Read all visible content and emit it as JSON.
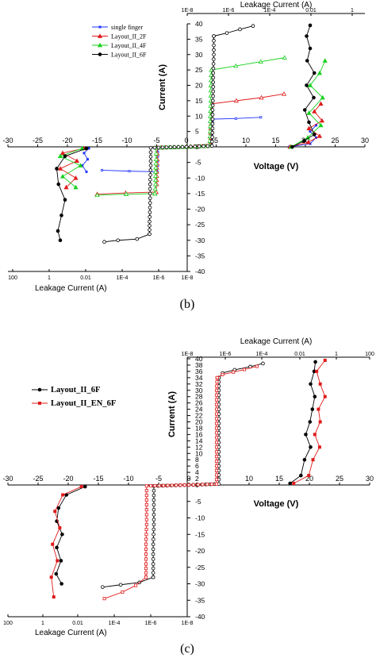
{
  "panel_labels": [
    "(b)",
    "(c)"
  ],
  "chart_data": [
    {
      "type": "line",
      "panel": "(b)",
      "xlabel": "Voltage (V)",
      "ylabel": "Current (A)",
      "top_axis_label": "Leakage Current (A)",
      "bottom_axis_label": "Leakage Current (A)",
      "xlim": [
        -30,
        30
      ],
      "ylim": [
        -40,
        40
      ],
      "x_ticks": [
        "-30",
        "-25",
        "-20",
        "-15",
        "-10",
        "-5",
        "0",
        "5",
        "10",
        "15",
        "20",
        "25",
        "30"
      ],
      "y_ticks": [
        "40",
        "35",
        "30",
        "25",
        "20",
        "15",
        "10",
        "5",
        "0",
        "-5",
        "-10",
        "-15",
        "-20",
        "-25",
        "-30",
        "-35",
        "-40"
      ],
      "leak_ticks_top": [
        "1E-8",
        "1E-6",
        "1E-4",
        "0.01",
        "1"
      ],
      "leak_ticks_bottom": [
        "100",
        "1",
        "0.01",
        "1E-4",
        "1E-6",
        "1E-8"
      ],
      "legend_position": "top-left",
      "series": [
        {
          "name": "single finger",
          "color": "#1f35ff",
          "marker": "square",
          "pos_iv": [
            [
              0,
              0
            ],
            [
              4.2,
              0.3
            ],
            [
              4.3,
              2
            ],
            [
              4.3,
              4
            ],
            [
              4.3,
              6
            ],
            [
              4.4,
              8
            ],
            [
              4.5,
              9
            ]
          ],
          "pos_leak": [
            [
              4.2,
              9
            ],
            [
              8.3,
              9.2
            ],
            [
              12.5,
              9.6
            ]
          ],
          "pos_drift": [
            [
              17.3,
              0
            ],
            [
              20.8,
              1
            ],
            [
              21.8,
              3
            ],
            [
              20.8,
              5
            ],
            [
              21.8,
              7
            ]
          ],
          "neg_iv": [
            [
              0,
              0
            ],
            [
              -4.8,
              -0.3
            ],
            [
              -4.8,
              -3
            ],
            [
              -4.8,
              -6
            ],
            [
              -4.9,
              -8
            ]
          ],
          "neg_leak": [
            [
              -4.9,
              -8
            ],
            [
              -9.6,
              -7.8
            ],
            [
              -14.2,
              -7.5
            ]
          ],
          "neg_drift": [
            [
              -16.4,
              -0.5
            ],
            [
              -17.2,
              -2
            ],
            [
              -16.6,
              -4
            ],
            [
              -17.5,
              -6
            ],
            [
              -16.8,
              -8
            ]
          ]
        },
        {
          "name": "Layout_II_2F",
          "color": "#e01b1b",
          "marker": "triangle",
          "pos_iv": [
            [
              0,
              0
            ],
            [
              4.0,
              0.3
            ],
            [
              4.1,
              3
            ],
            [
              4.1,
              6
            ],
            [
              4.2,
              9
            ],
            [
              4.2,
              12
            ],
            [
              4.3,
              14
            ]
          ],
          "pos_leak": [
            [
              4.3,
              14
            ],
            [
              8.4,
              15
            ],
            [
              12.6,
              16
            ],
            [
              16.4,
              17.2
            ]
          ],
          "pos_drift": [
            [
              17.4,
              0
            ],
            [
              20.5,
              1.5
            ],
            [
              22.4,
              3.5
            ],
            [
              20.6,
              6
            ],
            [
              22.8,
              8.5
            ],
            [
              21.5,
              11.5
            ],
            [
              22.6,
              14
            ]
          ],
          "neg_iv": [
            [
              0,
              0
            ],
            [
              -4.9,
              -0.3
            ],
            [
              -4.9,
              -4
            ],
            [
              -5.0,
              -8
            ],
            [
              -5.0,
              -12
            ],
            [
              -5.1,
              -14.5
            ]
          ],
          "neg_leak": [
            [
              -5.1,
              -14.5
            ],
            [
              -10.2,
              -14.8
            ],
            [
              -15.0,
              -15.2
            ]
          ],
          "neg_drift": [
            [
              -17.2,
              -0.5
            ],
            [
              -20.8,
              -2
            ],
            [
              -18.4,
              -4.5
            ],
            [
              -21.2,
              -7
            ],
            [
              -18.6,
              -10
            ],
            [
              -20.2,
              -13
            ]
          ]
        },
        {
          "name": "Layout_II_4F",
          "color": "#19d11e",
          "marker": "triangle",
          "pos_iv": [
            [
              0,
              0
            ],
            [
              3.9,
              0.3
            ],
            [
              4.0,
              5
            ],
            [
              4.0,
              10
            ],
            [
              4.1,
              15
            ],
            [
              4.1,
              20
            ],
            [
              4.2,
              25
            ]
          ],
          "pos_leak": [
            [
              4.2,
              25
            ],
            [
              8.3,
              26.3
            ],
            [
              12.5,
              27.7
            ],
            [
              16.5,
              29
            ]
          ],
          "pos_drift": [
            [
              17.6,
              0
            ],
            [
              20.4,
              3
            ],
            [
              22.6,
              7
            ],
            [
              20.6,
              11
            ],
            [
              22.9,
              16
            ],
            [
              20.8,
              20
            ],
            [
              22.4,
              24
            ],
            [
              23.3,
              28
            ]
          ],
          "neg_iv": [
            [
              0,
              0
            ],
            [
              -5.1,
              -0.3
            ],
            [
              -5.1,
              -4
            ],
            [
              -5.2,
              -8
            ],
            [
              -5.2,
              -12
            ],
            [
              -5.3,
              -15
            ]
          ],
          "neg_leak": [
            [
              -5.3,
              -15
            ],
            [
              -10.1,
              -15.2
            ],
            [
              -15.0,
              -15.5
            ]
          ],
          "neg_drift": [
            [
              -17.5,
              -0.5
            ],
            [
              -21.2,
              -3
            ],
            [
              -17.8,
              -6
            ],
            [
              -20.8,
              -9.5
            ],
            [
              -18.6,
              -13
            ]
          ]
        },
        {
          "name": "Layout_II_6F",
          "color": "#000000",
          "marker": "circle",
          "pos_iv": [
            [
              0,
              0
            ],
            [
              4.3,
              0.3
            ],
            [
              4.4,
              6
            ],
            [
              4.4,
              12
            ],
            [
              4.5,
              18
            ],
            [
              4.5,
              24
            ],
            [
              4.6,
              30
            ],
            [
              4.6,
              36
            ]
          ],
          "pos_leak": [
            [
              4.6,
              36
            ],
            [
              6.8,
              37
            ],
            [
              9.0,
              38.2
            ],
            [
              11.2,
              39.3
            ]
          ],
          "pos_drift": [
            [
              17.8,
              0
            ],
            [
              19.8,
              2
            ],
            [
              21.5,
              4
            ],
            [
              20.6,
              8
            ],
            [
              19.9,
              12
            ],
            [
              21.4,
              16
            ],
            [
              20.2,
              20
            ],
            [
              21.5,
              24
            ],
            [
              20.3,
              28
            ],
            [
              20.8,
              32
            ],
            [
              20.2,
              36
            ],
            [
              20.8,
              39.5
            ]
          ],
          "neg_iv": [
            [
              0,
              0
            ],
            [
              -6.0,
              -0.3
            ],
            [
              -6.0,
              -6
            ],
            [
              -6.1,
              -12
            ],
            [
              -6.1,
              -18
            ],
            [
              -6.2,
              -24
            ],
            [
              -6.2,
              -28
            ]
          ],
          "neg_leak": [
            [
              -6.2,
              -28
            ],
            [
              -8.3,
              -29.6
            ],
            [
              -11.5,
              -30
            ],
            [
              -13.8,
              -30.5
            ]
          ],
          "neg_drift": [
            [
              -16.8,
              -0.5
            ],
            [
              -20.4,
              -3
            ],
            [
              -21.8,
              -7
            ],
            [
              -21.5,
              -12
            ],
            [
              -20.4,
              -17
            ],
            [
              -21.0,
              -22
            ],
            [
              -21.6,
              -27
            ],
            [
              -21.2,
              -30
            ]
          ]
        }
      ]
    },
    {
      "type": "line",
      "panel": "(c)",
      "xlabel": "Voltage (V)",
      "ylabel": "Current (A)",
      "top_axis_label": "Leakage Current (A)",
      "bottom_axis_label": "Leakage Current (A)",
      "xlim": [
        -30,
        30
      ],
      "ylim": [
        -40,
        40
      ],
      "x_ticks": [
        "-30",
        "-25",
        "-20",
        "-15",
        "-10",
        "-5",
        "0",
        "5",
        "10",
        "15",
        "20",
        "25",
        "30"
      ],
      "y_ticks": [
        "40",
        "38",
        "36",
        "34",
        "32",
        "30",
        "28",
        "26",
        "24",
        "22",
        "20",
        "18",
        "16",
        "14",
        "12",
        "10",
        "8",
        "6",
        "4",
        "2",
        "0",
        "-5",
        "-10",
        "-15",
        "-20",
        "-25",
        "-30",
        "-35",
        "-40"
      ],
      "leak_ticks_top": [
        "1E-8",
        "1E-6",
        "1E-4",
        "0.01",
        "1",
        "100"
      ],
      "leak_ticks_bottom": [
        "100",
        "1",
        "0.01",
        "1E-4",
        "1E-6",
        "1E-8"
      ],
      "legend_position": "top-left",
      "series": [
        {
          "name": "Layout_II_6F",
          "color": "#000000",
          "marker": "circle",
          "pos_iv": [
            [
              0,
              0
            ],
            [
              5.0,
              0.3
            ],
            [
              5.0,
              6
            ],
            [
              5.0,
              12
            ],
            [
              5.0,
              18
            ],
            [
              5.0,
              24
            ],
            [
              5.0,
              30
            ],
            [
              5.0,
              34
            ]
          ],
          "pos_leak": [
            [
              5.0,
              34
            ],
            [
              5.6,
              35.5
            ],
            [
              7.6,
              36.5
            ],
            [
              10.2,
              37.5
            ],
            [
              12.3,
              38.5
            ]
          ],
          "pos_drift": [
            [
              16.8,
              0.5
            ],
            [
              18.6,
              3
            ],
            [
              19.2,
              8
            ],
            [
              20.2,
              12
            ],
            [
              19.4,
              16
            ],
            [
              20.1,
              20
            ],
            [
              20.5,
              24
            ],
            [
              20.9,
              28
            ],
            [
              20.2,
              32
            ],
            [
              20.8,
              36
            ],
            [
              21.0,
              39
            ]
          ],
          "neg_iv": [
            [
              0,
              0
            ],
            [
              -5.8,
              -0.3
            ],
            [
              -5.8,
              -6
            ],
            [
              -5.8,
              -12
            ],
            [
              -5.9,
              -18
            ],
            [
              -5.9,
              -24
            ],
            [
              -5.9,
              -28
            ]
          ],
          "neg_leak": [
            [
              -5.9,
              -28
            ],
            [
              -8.2,
              -29.6
            ],
            [
              -11.3,
              -30.3
            ],
            [
              -14.3,
              -31
            ]
          ],
          "neg_drift": [
            [
              -17.2,
              -0.5
            ],
            [
              -20.3,
              -3
            ],
            [
              -21.6,
              -7
            ],
            [
              -21.9,
              -11
            ],
            [
              -21.0,
              -15
            ],
            [
              -21.9,
              -19
            ],
            [
              -21.2,
              -23
            ],
            [
              -22.0,
              -27
            ],
            [
              -21.1,
              -30
            ]
          ]
        },
        {
          "name": "Layout_II_EN_6F",
          "color": "#e01b1b",
          "marker": "square",
          "pos_iv": [
            [
              0,
              0
            ],
            [
              4.6,
              0.3
            ],
            [
              4.6,
              6
            ],
            [
              4.6,
              12
            ],
            [
              4.6,
              18
            ],
            [
              4.6,
              24
            ],
            [
              4.6,
              30
            ],
            [
              4.7,
              34
            ]
          ],
          "pos_leak": [
            [
              4.7,
              34
            ],
            [
              5.6,
              35
            ],
            [
              7.4,
              35.8
            ],
            [
              9.2,
              36.6
            ],
            [
              11.3,
              37.6
            ]
          ],
          "pos_drift": [
            [
              17.4,
              0.5
            ],
            [
              19.9,
              3
            ],
            [
              20.6,
              8
            ],
            [
              21.7,
              12
            ],
            [
              20.9,
              16
            ],
            [
              21.8,
              20
            ],
            [
              21.5,
              24
            ],
            [
              22.6,
              28
            ],
            [
              21.8,
              32
            ],
            [
              21.2,
              36
            ],
            [
              22.6,
              39.5
            ]
          ],
          "neg_iv": [
            [
              0,
              0
            ],
            [
              -7.0,
              -0.3
            ],
            [
              -7.0,
              -6
            ],
            [
              -7.0,
              -12
            ],
            [
              -7.1,
              -18
            ],
            [
              -7.1,
              -24
            ],
            [
              -7.1,
              -28
            ]
          ],
          "neg_leak": [
            [
              -7.1,
              -28
            ],
            [
              -8.8,
              -30.5
            ],
            [
              -11.0,
              -32.5
            ],
            [
              -14.0,
              -34.5
            ]
          ],
          "neg_drift": [
            [
              -17.8,
              -0.5
            ],
            [
              -20.9,
              -3
            ],
            [
              -22.2,
              -8
            ],
            [
              -21.4,
              -13
            ],
            [
              -22.6,
              -18
            ],
            [
              -21.8,
              -23
            ],
            [
              -22.8,
              -28
            ],
            [
              -22.4,
              -34
            ]
          ]
        }
      ]
    }
  ]
}
